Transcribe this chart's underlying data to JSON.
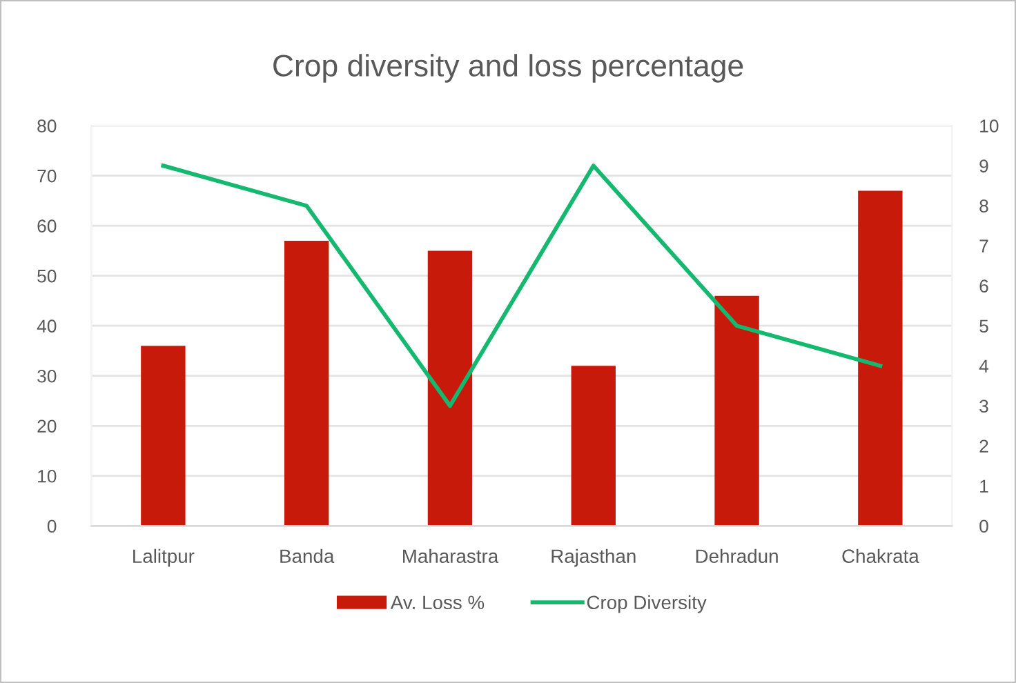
{
  "chart_data": {
    "type": "bar",
    "title": "Crop diversity and loss percentage",
    "categories": [
      "Lalitpur",
      "Banda",
      "Maharastra",
      "Rajasthan",
      "Dehradun",
      "Chakrata"
    ],
    "series": [
      {
        "name": "Av. Loss %",
        "color": "#c81a0a",
        "values": [
          36,
          57,
          55,
          32,
          46,
          67
        ]
      },
      {
        "name": "Crop Diversity",
        "type": "line",
        "axis": "y2",
        "color": "#14b86e",
        "values": [
          9,
          8,
          3,
          9,
          5,
          4
        ]
      }
    ],
    "ylim": [
      0,
      80
    ],
    "yticks": [
      0,
      10,
      20,
      30,
      40,
      50,
      60,
      70,
      80
    ],
    "y2lim": [
      0,
      10
    ],
    "y2ticks": [
      0,
      1,
      2,
      3,
      4,
      5,
      6,
      7,
      8,
      9,
      10
    ],
    "grid": "y",
    "legend": "bottom"
  }
}
